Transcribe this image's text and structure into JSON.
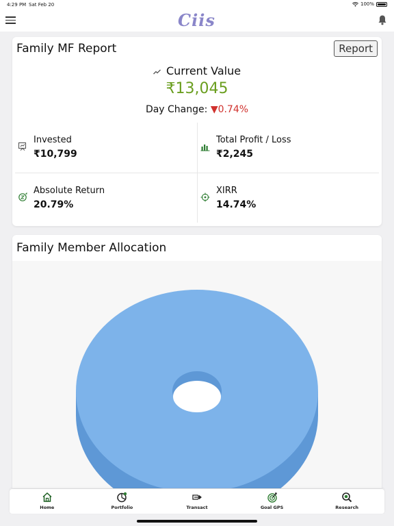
{
  "status_bar": {
    "time": "4:29 PM",
    "date": "Sat Feb 20",
    "battery": "100%"
  },
  "header": {
    "logo": "Ciis"
  },
  "report_card": {
    "title": "Family MF Report",
    "report_button": "Report",
    "current_value_label": "Current Value",
    "current_value": "₹13,045",
    "day_change_label": "Day Change:",
    "day_change_value": "▼0.74%",
    "stats": [
      {
        "label": "Invested",
        "value": "₹10,799",
        "icon": "invest-icon"
      },
      {
        "label": "Total Profit / Loss",
        "value": "₹2,245",
        "icon": "bar-chart-icon"
      },
      {
        "label": "Absolute Return",
        "value": "20.79%",
        "icon": "return-icon"
      },
      {
        "label": "XIRR",
        "value": "14.74%",
        "icon": "target-icon"
      }
    ]
  },
  "allocation_card": {
    "title": "Family Member Allocation"
  },
  "chart_data": {
    "type": "pie",
    "title": "Family Member Allocation",
    "slices": [
      {
        "value": 100,
        "color": "#7db3ea"
      }
    ]
  },
  "tabs": [
    {
      "label": "Home",
      "icon": "home-icon"
    },
    {
      "label": "Portfolio",
      "icon": "portfolio-icon"
    },
    {
      "label": "Transact",
      "icon": "transact-icon"
    },
    {
      "label": "Goal GPS",
      "icon": "goal-gps-icon"
    },
    {
      "label": "Research",
      "icon": "research-icon"
    }
  ],
  "colors": {
    "positive": "#6a9e1f",
    "negative": "#d0312d",
    "accent": "#2e7d32",
    "pie": "#7db3ea"
  }
}
